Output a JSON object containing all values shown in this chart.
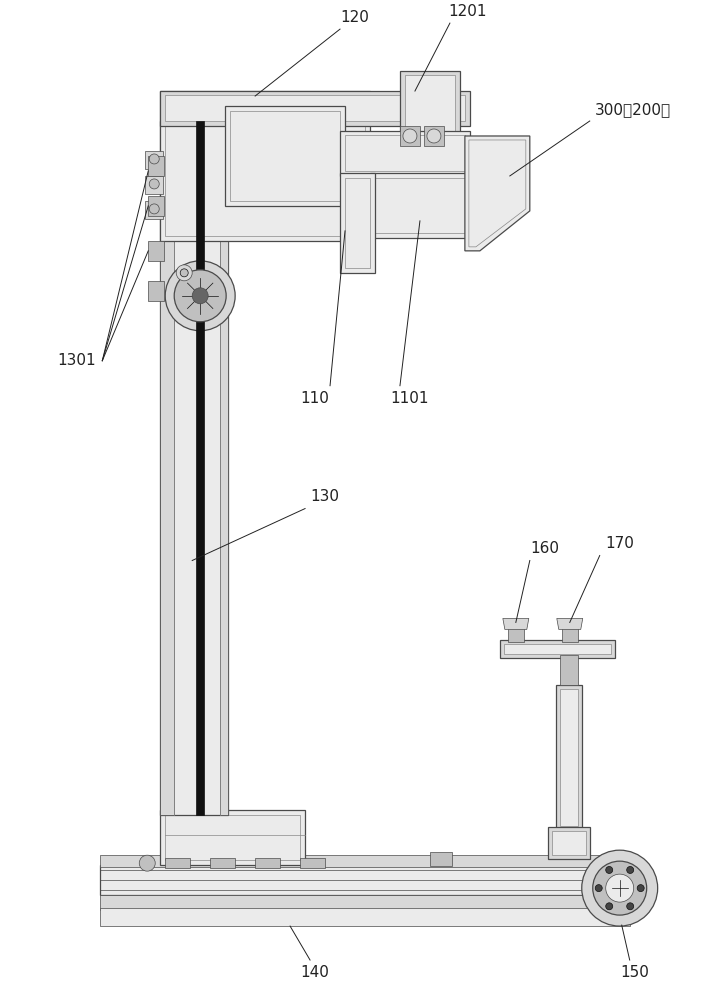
{
  "bg_color": "#ffffff",
  "lc": "#4a4a4a",
  "dk": "#111111",
  "mg": "#888888",
  "lg": "#cccccc",
  "fc_light": "#ebebeb",
  "fc_mid": "#d8d8d8",
  "fc_dark": "#c0c0c0",
  "lw_thin": 0.5,
  "lw_med": 0.9,
  "lw_thick": 1.4,
  "ann_lw": 0.7,
  "ann_color": "#222222",
  "fontsize": 11
}
